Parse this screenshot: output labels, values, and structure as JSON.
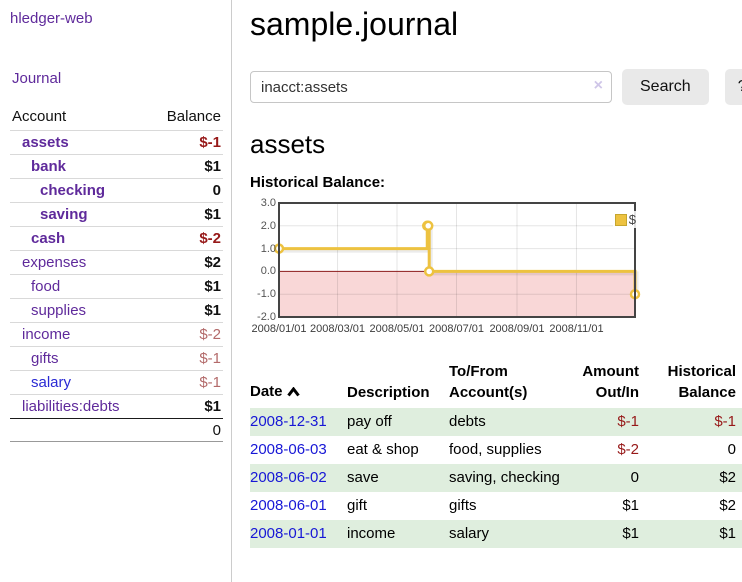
{
  "sidebar": {
    "brand": "hledger-web",
    "journal_link": "Journal",
    "accounts": {
      "header_account": "Account",
      "header_balance": "Balance",
      "rows": [
        {
          "name": "assets",
          "balance": "$-1"
        },
        {
          "name": "bank",
          "balance": "$1"
        },
        {
          "name": "checking",
          "balance": "0"
        },
        {
          "name": "saving",
          "balance": "$1"
        },
        {
          "name": "cash",
          "balance": "$-2"
        },
        {
          "name": "expenses",
          "balance": "$2"
        },
        {
          "name": "food",
          "balance": "$1"
        },
        {
          "name": "supplies",
          "balance": "$1"
        },
        {
          "name": "income",
          "balance": "$-2"
        },
        {
          "name": "gifts",
          "balance": "$-1"
        },
        {
          "name": "salary",
          "balance": "$-1"
        },
        {
          "name": "liabilities:debts",
          "balance": "$1"
        }
      ],
      "total": "0"
    }
  },
  "main": {
    "title": "sample.journal",
    "search": {
      "value": "inacct:assets",
      "clear_icon": "×",
      "button_label": "Search",
      "help_label": "?"
    },
    "account_heading": "assets",
    "section_label": "Historical Balance:"
  },
  "chart_data": {
    "type": "line",
    "style": "step-after",
    "title": "Historical Balance:",
    "series": [
      {
        "name": "$",
        "color": "#edc240",
        "points": [
          [
            "2008-01-01",
            1
          ],
          [
            "2008-06-01",
            2
          ],
          [
            "2008-06-02",
            2
          ],
          [
            "2008-06-03",
            0
          ],
          [
            "2008-12-31",
            -1
          ]
        ]
      }
    ],
    "xlim": [
      "2008-01-01",
      "2008-12-31"
    ],
    "ylim": [
      -2,
      3
    ],
    "yticks": [
      3,
      2,
      1,
      0,
      -1,
      -2
    ],
    "xticks": [
      "2008-01-01",
      "2008-03-01",
      "2008-05-01",
      "2008-07-01",
      "2008-09-01",
      "2008-11-01"
    ],
    "grid": true,
    "legend": {
      "label": "$",
      "position": "top-right"
    },
    "zero_line_color": "#8b1a1a",
    "negative_region_color": "#f9d7d7",
    "frame_color": "#444444"
  },
  "register": {
    "headers": {
      "date": "Date",
      "description": "Description",
      "to_from": "To/From Account(s)",
      "amount": "Amount Out/In",
      "balance": "Historical Balance"
    },
    "rows": [
      {
        "date": "2008-12-31",
        "description": "pay off",
        "to_from": "debts",
        "amount": "$-1",
        "balance": "$-1"
      },
      {
        "date": "2008-06-03",
        "description": "eat & shop",
        "to_from": "food, supplies",
        "amount": "$-2",
        "balance": "0"
      },
      {
        "date": "2008-06-02",
        "description": "save",
        "to_from": "saving, checking",
        "amount": "0",
        "balance": "$2"
      },
      {
        "date": "2008-06-01",
        "description": "gift",
        "to_from": "gifts",
        "amount": "$1",
        "balance": "$2"
      },
      {
        "date": "2008-01-01",
        "description": "income",
        "to_from": "salary",
        "amount": "$1",
        "balance": "$1"
      }
    ]
  },
  "colors": {
    "link_purple": "#5f2a9b",
    "link_blue": "#2a2ad4",
    "date_blue": "#1717d6",
    "negative_strong": "#971919",
    "negative_soft": "#b36a6a",
    "row_stripe_green": "#dfeede",
    "series_gold": "#edc240",
    "negative_region_pink": "#f9d7d7",
    "zero_line_red": "#8b1a1a"
  }
}
